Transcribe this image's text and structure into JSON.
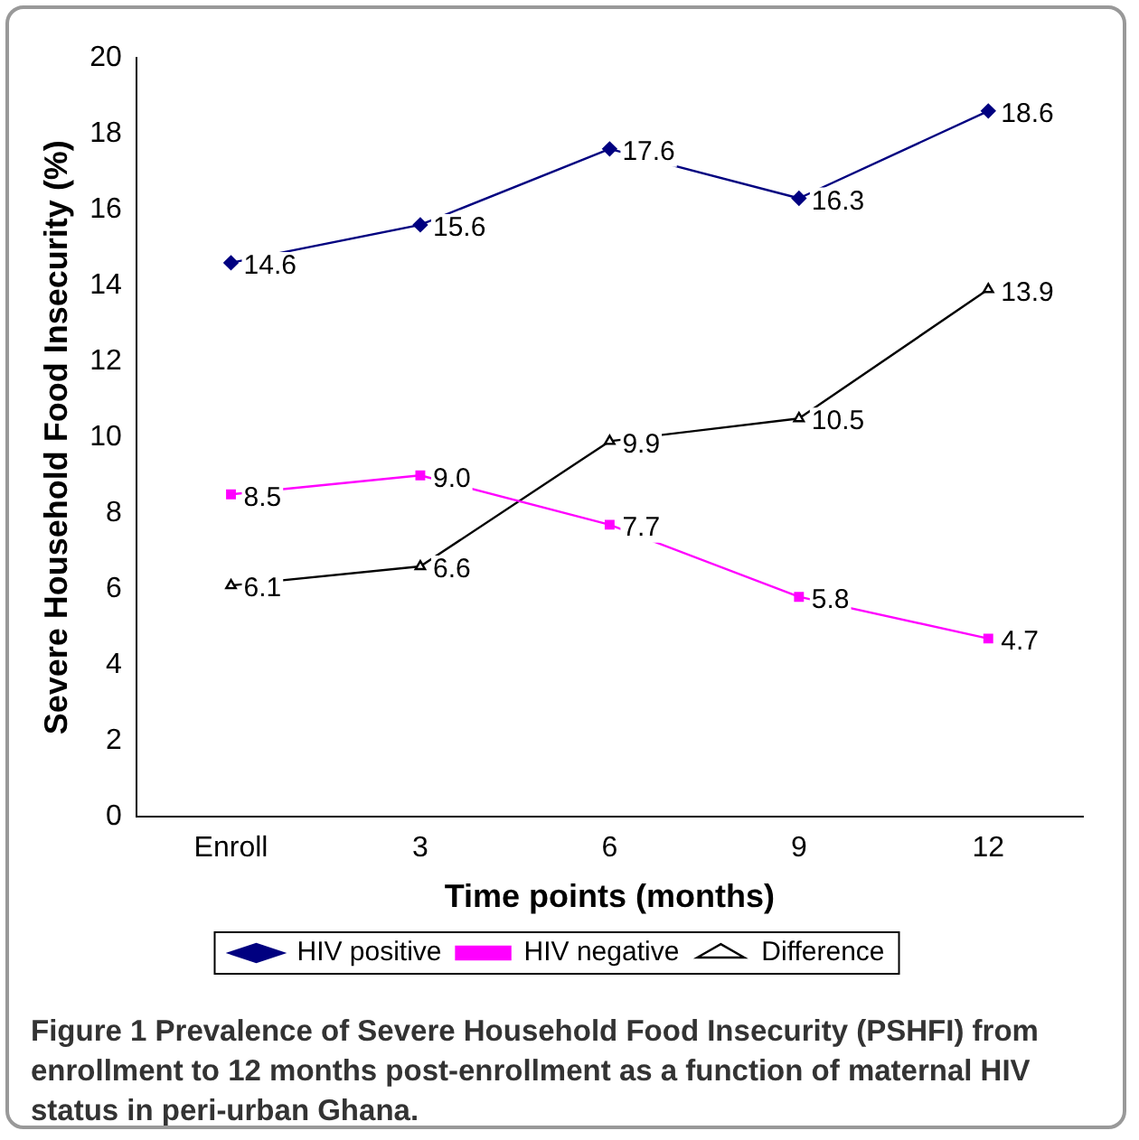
{
  "chart_data": {
    "type": "line",
    "xlabel": "Time points (months)",
    "ylabel": "Severe Household Food Insecurity (%)",
    "categories": [
      "Enroll",
      "3",
      "6",
      "9",
      "12"
    ],
    "ylim": [
      0,
      20
    ],
    "yticks": [
      0,
      2,
      4,
      6,
      8,
      10,
      12,
      14,
      16,
      18,
      20
    ],
    "grid": false,
    "legend": "bottom",
    "line_style": "solid",
    "series": [
      {
        "name": "HIV positive",
        "color": "#000080",
        "marker": "diamond",
        "values": [
          14.6,
          15.6,
          17.6,
          16.3,
          18.6
        ],
        "value_labels": [
          "14.6",
          "15.6",
          "17.6",
          "16.3",
          "18.6"
        ]
      },
      {
        "name": "HIV negative",
        "color": "#ff00ff",
        "marker": "square",
        "values": [
          8.5,
          9.0,
          7.7,
          5.8,
          4.7
        ],
        "value_labels": [
          "8.5",
          "9.0",
          "7.7",
          "5.8",
          "4.7"
        ]
      },
      {
        "name": "Difference",
        "color": "#000000",
        "marker": "triangle",
        "values": [
          6.1,
          6.6,
          9.9,
          10.5,
          13.9
        ],
        "value_labels": [
          "6.1",
          "6.6",
          "9.9",
          "10.5",
          "13.9"
        ]
      }
    ],
    "annotations": [
      "Figure 1 Prevalence of Severe Household Food Insecurity (PSHFI) from enrollment to 12 months post-enrollment as a function of maternal HIV status in peri-urban Ghana."
    ]
  }
}
